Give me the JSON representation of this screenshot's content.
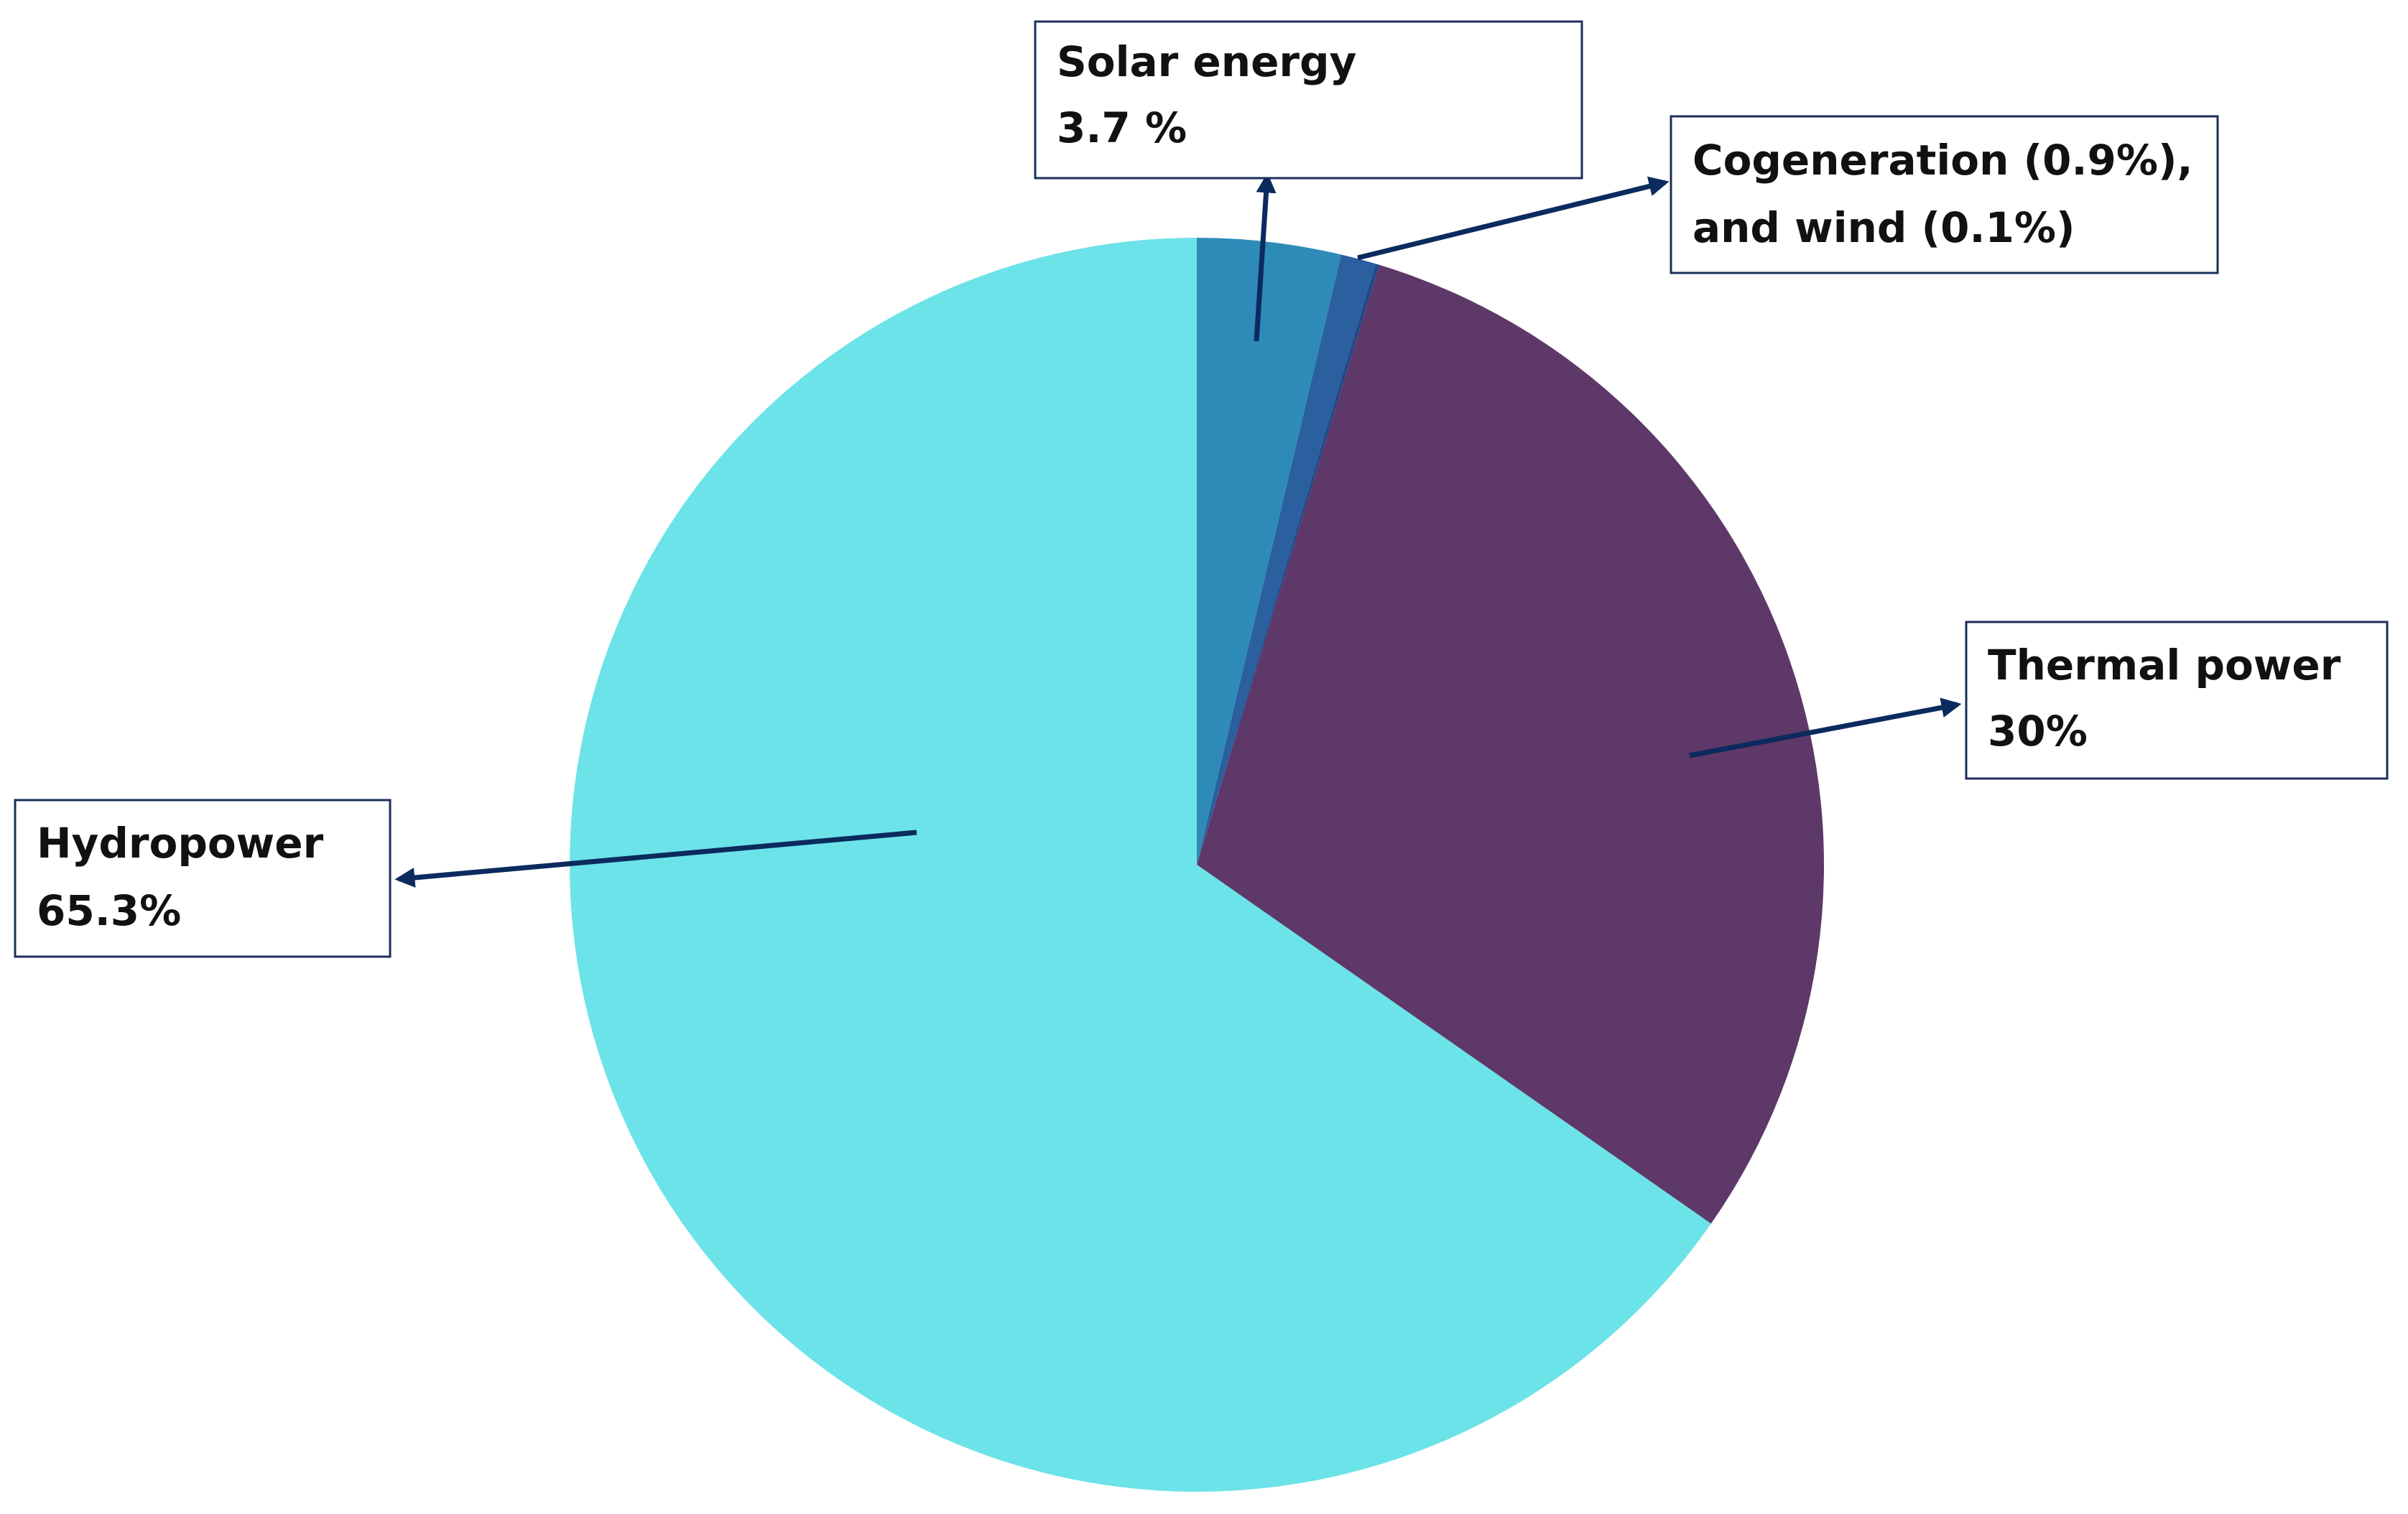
{
  "chart_data": {
    "type": "pie",
    "categories": [
      "Solar energy",
      "Cogeneration (0.9%),",
      "and wind (0.1%)",
      "Thermal power",
      "Hydropower"
    ],
    "values": [
      3.7,
      0.9,
      0.1,
      30,
      65.3
    ],
    "value_labels": [
      "3.7 %",
      null,
      null,
      "30%",
      "65.3%"
    ],
    "colors": [
      "#2e8bb8",
      "#2a5fa0",
      "#23488a",
      "#5e3868",
      "#6ce3e8"
    ]
  }
}
